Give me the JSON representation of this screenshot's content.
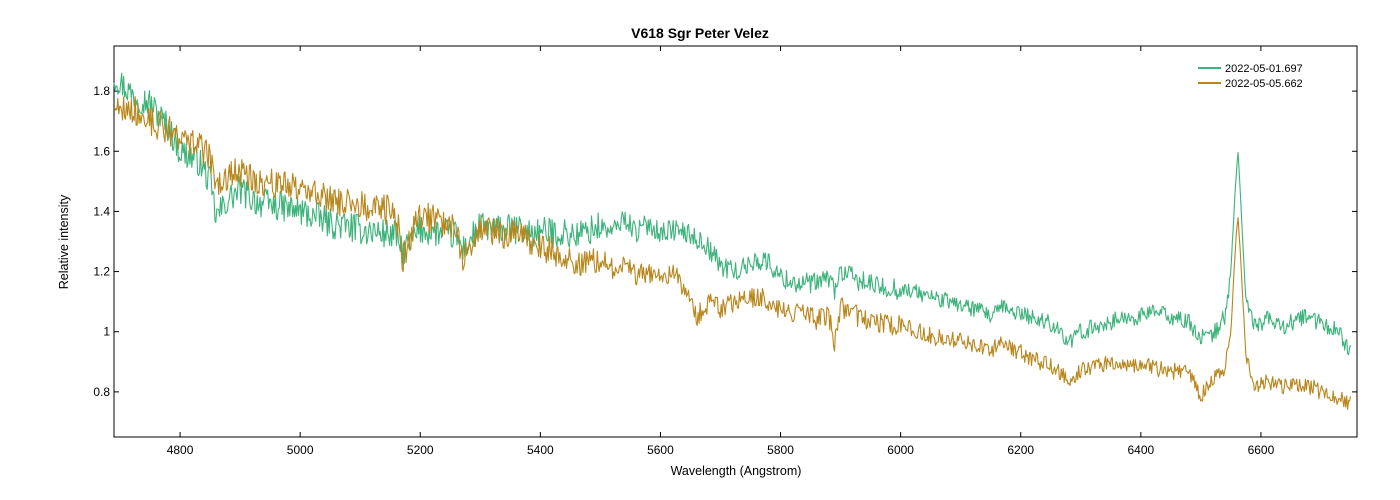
{
  "chart_data": {
    "type": "line",
    "title": "V618 Sgr   Peter Velez",
    "xlabel": "Wavelength (Angstrom)",
    "ylabel": "Relative intensity",
    "xlim": [
      4690,
      6760
    ],
    "ylim": [
      0.65,
      1.95
    ],
    "x_ticks": [
      4800,
      5000,
      5200,
      5400,
      5600,
      5800,
      6000,
      6200,
      6400,
      6600
    ],
    "y_ticks": [
      0.8,
      1,
      1.2,
      1.4,
      1.6,
      1.8
    ],
    "y_tick_labels": [
      "0.8",
      "1",
      "1.2",
      "1.4",
      "1.6",
      "1.8"
    ],
    "grid": false,
    "legend_position": "top-right",
    "series": [
      {
        "name": "2022-05-01.697",
        "color": "#3cb37a",
        "x": [
          4690,
          4720,
          4750,
          4780,
          4800,
          4830,
          4850,
          4860,
          4880,
          4900,
          4930,
          4960,
          4980,
          5000,
          5030,
          5050,
          5080,
          5100,
          5130,
          5160,
          5170,
          5200,
          5230,
          5260,
          5270,
          5300,
          5330,
          5360,
          5380,
          5400,
          5430,
          5460,
          5500,
          5520,
          5540,
          5560,
          5580,
          5600,
          5620,
          5640,
          5660,
          5680,
          5700,
          5730,
          5760,
          5780,
          5800,
          5830,
          5860,
          5880,
          5890,
          5900,
          5930,
          5960,
          6000,
          6030,
          6060,
          6100,
          6130,
          6150,
          6170,
          6200,
          6230,
          6260,
          6280,
          6300,
          6330,
          6360,
          6400,
          6420,
          6450,
          6480,
          6500,
          6520,
          6540,
          6550,
          6558,
          6562,
          6566,
          6575,
          6590,
          6610,
          6640,
          6670,
          6700,
          6730,
          6750
        ],
        "y": [
          1.85,
          1.79,
          1.76,
          1.68,
          1.6,
          1.57,
          1.5,
          1.38,
          1.44,
          1.47,
          1.43,
          1.42,
          1.41,
          1.4,
          1.38,
          1.36,
          1.35,
          1.34,
          1.33,
          1.32,
          1.26,
          1.34,
          1.33,
          1.32,
          1.27,
          1.35,
          1.34,
          1.34,
          1.33,
          1.33,
          1.33,
          1.32,
          1.35,
          1.33,
          1.38,
          1.33,
          1.36,
          1.33,
          1.34,
          1.33,
          1.31,
          1.28,
          1.22,
          1.2,
          1.24,
          1.23,
          1.18,
          1.16,
          1.16,
          1.18,
          1.14,
          1.2,
          1.17,
          1.15,
          1.14,
          1.13,
          1.11,
          1.09,
          1.07,
          1.05,
          1.08,
          1.06,
          1.04,
          1.02,
          0.96,
          1.0,
          1.02,
          1.04,
          1.05,
          1.07,
          1.05,
          1.03,
          0.98,
          0.99,
          1.05,
          1.2,
          1.5,
          1.6,
          1.45,
          1.1,
          1.02,
          1.04,
          1.02,
          1.05,
          1.03,
          1.0,
          0.93
        ]
      },
      {
        "name": "2022-05-05.662",
        "color": "#b8861b",
        "x": [
          4690,
          4720,
          4750,
          4780,
          4800,
          4830,
          4850,
          4860,
          4880,
          4900,
          4930,
          4960,
          4980,
          5000,
          5030,
          5050,
          5080,
          5100,
          5130,
          5160,
          5170,
          5200,
          5230,
          5260,
          5270,
          5300,
          5330,
          5360,
          5380,
          5400,
          5430,
          5460,
          5500,
          5520,
          5540,
          5560,
          5580,
          5600,
          5620,
          5640,
          5660,
          5680,
          5700,
          5730,
          5760,
          5780,
          5800,
          5830,
          5860,
          5880,
          5890,
          5900,
          5930,
          5960,
          6000,
          6030,
          6060,
          6100,
          6130,
          6150,
          6170,
          6200,
          6230,
          6260,
          6280,
          6300,
          6330,
          6360,
          6400,
          6420,
          6450,
          6480,
          6500,
          6520,
          6540,
          6550,
          6558,
          6562,
          6566,
          6575,
          6590,
          6610,
          6640,
          6670,
          6700,
          6730,
          6750
        ],
        "y": [
          1.75,
          1.74,
          1.7,
          1.67,
          1.65,
          1.62,
          1.58,
          1.48,
          1.52,
          1.53,
          1.5,
          1.49,
          1.49,
          1.47,
          1.46,
          1.44,
          1.43,
          1.42,
          1.41,
          1.4,
          1.24,
          1.39,
          1.37,
          1.35,
          1.25,
          1.34,
          1.33,
          1.32,
          1.3,
          1.28,
          1.26,
          1.22,
          1.25,
          1.21,
          1.23,
          1.19,
          1.2,
          1.18,
          1.2,
          1.14,
          1.05,
          1.1,
          1.08,
          1.1,
          1.12,
          1.1,
          1.07,
          1.06,
          1.04,
          1.06,
          0.96,
          1.08,
          1.05,
          1.03,
          1.02,
          1.0,
          0.98,
          0.97,
          0.95,
          0.94,
          0.96,
          0.93,
          0.9,
          0.88,
          0.83,
          0.87,
          0.89,
          0.9,
          0.89,
          0.88,
          0.87,
          0.86,
          0.79,
          0.84,
          0.88,
          1.0,
          1.3,
          1.38,
          1.25,
          0.92,
          0.82,
          0.83,
          0.82,
          0.83,
          0.8,
          0.78,
          0.76
        ]
      }
    ]
  }
}
